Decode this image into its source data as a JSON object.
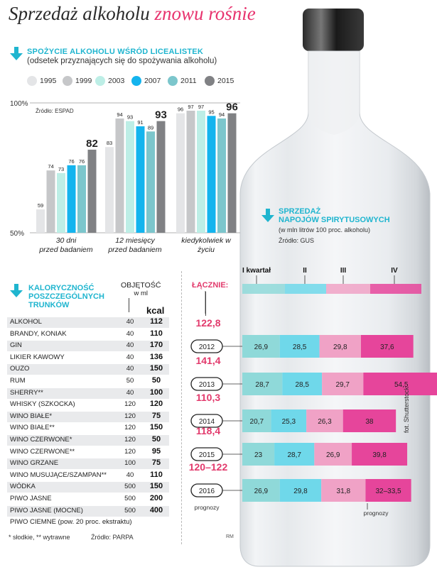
{
  "title": {
    "main": "Sprzedaż alkoholu",
    "accent": "znowu rośnie"
  },
  "section1": {
    "heading": "SPOŻYCIE ALKOHOLU WŚRÓD LICEALISTEK",
    "subheading": "(odsetek przyznających się do spożywania alkoholu)",
    "source": "Źródło: ESPAD",
    "ytick_top": "100%",
    "ytick_bottom": "50%"
  },
  "section2": {
    "heading_line1": "KALORYCZNOŚĆ",
    "heading_line2": "POSZCZEGÓLNYCH",
    "heading_line3": "TRUNKÓW",
    "vol_header_line1": "OBJĘTOŚĆ",
    "vol_header_line2": "w ml",
    "kcal_header": "kcal",
    "total_header": "ŁĄCZNIE:",
    "footnote": "* słodkie, ** wytrawne",
    "source": "Źródło: PARPA",
    "credit": "RM"
  },
  "section3": {
    "heading_line1": "SPRZEDAŻ",
    "heading_line2": "NAPOJÓW SPIRYTUSOWYCH",
    "sub": "(w mln litrów 100 proc. alkoholu)",
    "source": "Źródło: GUS",
    "quarter_labels": [
      "I kwartał",
      "II",
      "III",
      "IV"
    ],
    "forecast_note": "prognozy",
    "forecast_note2": "prognozy",
    "photo_credit": "fot. Shutterstock"
  },
  "drinks": [
    {
      "name": "ALKOHOL",
      "vol": "40",
      "kcal": "112"
    },
    {
      "name": "BRANDY, KONIAK",
      "vol": "40",
      "kcal": "110"
    },
    {
      "name": "GIN",
      "vol": "40",
      "kcal": "170"
    },
    {
      "name": "LIKIER KAWOWY",
      "vol": "40",
      "kcal": "136"
    },
    {
      "name": "OUZO",
      "vol": "40",
      "kcal": "150"
    },
    {
      "name": "RUM",
      "vol": "50",
      "kcal": "50"
    },
    {
      "name": "SHERRY**",
      "vol": "40",
      "kcal": "100"
    },
    {
      "name": "WHISKY (SZKOCKA)",
      "vol": "120",
      "kcal": "120"
    },
    {
      "name": "WINO BIAŁE*",
      "vol": "120",
      "kcal": "75"
    },
    {
      "name": "WINO BIAŁE**",
      "vol": "120",
      "kcal": "150"
    },
    {
      "name": "WINO CZERWONE*",
      "vol": "120",
      "kcal": "50"
    },
    {
      "name": "WINO CZERWONE**",
      "vol": "120",
      "kcal": "95"
    },
    {
      "name": "WINO GRZANE",
      "vol": "100",
      "kcal": "75"
    },
    {
      "name": "WINO MUSUJĄCE/SZAMPAN**",
      "vol": "40",
      "kcal": "110"
    },
    {
      "name": "WÓDKA",
      "vol": "500",
      "kcal": "150"
    },
    {
      "name": "PIWO JASNE",
      "vol": "500",
      "kcal": "200"
    },
    {
      "name": "PIWO JASNE (MOCNE)",
      "vol": "500",
      "kcal": "400"
    },
    {
      "name": "PIWO CIEMNE (pow. 20 proc. ekstraktu)",
      "vol": "",
      "kcal": ""
    }
  ],
  "chart_data": [
    {
      "type": "bar",
      "title": "SPOŻYCIE ALKOHOLU WŚRÓD LICEALISTEK",
      "categories": [
        "30 dni przed badaniem",
        "12 miesięcy przed badaniem",
        "kiedykolwiek w życiu"
      ],
      "ylim": [
        50,
        100
      ],
      "ytick_labels": [
        "100%",
        "50%"
      ],
      "legend_placement": "top",
      "series": [
        {
          "name": "1995",
          "color": "#e4e5e7",
          "values": [
            59,
            83,
            96
          ]
        },
        {
          "name": "1999",
          "color": "#c6c7c9",
          "values": [
            74,
            94,
            97
          ]
        },
        {
          "name": "2003",
          "color": "#bdeee6",
          "values": [
            73,
            93,
            97
          ]
        },
        {
          "name": "2007",
          "color": "#14b4ee",
          "values": [
            76,
            91,
            95
          ]
        },
        {
          "name": "2011",
          "color": "#7cc6cc",
          "values": [
            76,
            89,
            94
          ]
        },
        {
          "name": "2015",
          "color": "#808184",
          "values": [
            82,
            93,
            96
          ]
        }
      ]
    },
    {
      "type": "bar",
      "title": "SPRZEDAŻ NAPOJÓW SPIRYTUSOWYCH",
      "stacked": true,
      "orientation": "horizontal",
      "categories": [
        "2012",
        "2013",
        "2014",
        "2015",
        "2016"
      ],
      "totals": [
        "122,8",
        "141,4",
        "110,3",
        "118,4",
        "120–122"
      ],
      "series": [
        {
          "name": "I kwartał",
          "color": "#8fd9d9",
          "values": [
            26.9,
            28.7,
            20.7,
            23,
            26.9
          ],
          "labels": [
            "26,9",
            "28,7",
            "20,7",
            "23",
            "26,9"
          ]
        },
        {
          "name": "II",
          "color": "#6fd8ea",
          "values": [
            28.5,
            28.5,
            25.3,
            28.7,
            29.8
          ],
          "labels": [
            "28,5",
            "28,5",
            "25,3",
            "28,7",
            "29,8"
          ]
        },
        {
          "name": "III",
          "color": "#f0a2c6",
          "values": [
            29.8,
            29.7,
            26.3,
            26.9,
            31.8
          ],
          "labels": [
            "29,8",
            "29,7",
            "26,3",
            "26,9",
            "31,8"
          ]
        },
        {
          "name": "IV",
          "color": "#e6459b",
          "values": [
            37.6,
            54.5,
            38,
            39.8,
            32.75
          ],
          "labels": [
            "37,6",
            "54,5",
            "38",
            "39,8",
            "32–33,5"
          ]
        }
      ]
    }
  ],
  "colors": {
    "accent": "#e8336e",
    "cyan": "#1fb5cf",
    "pink": "#e23a6c"
  }
}
